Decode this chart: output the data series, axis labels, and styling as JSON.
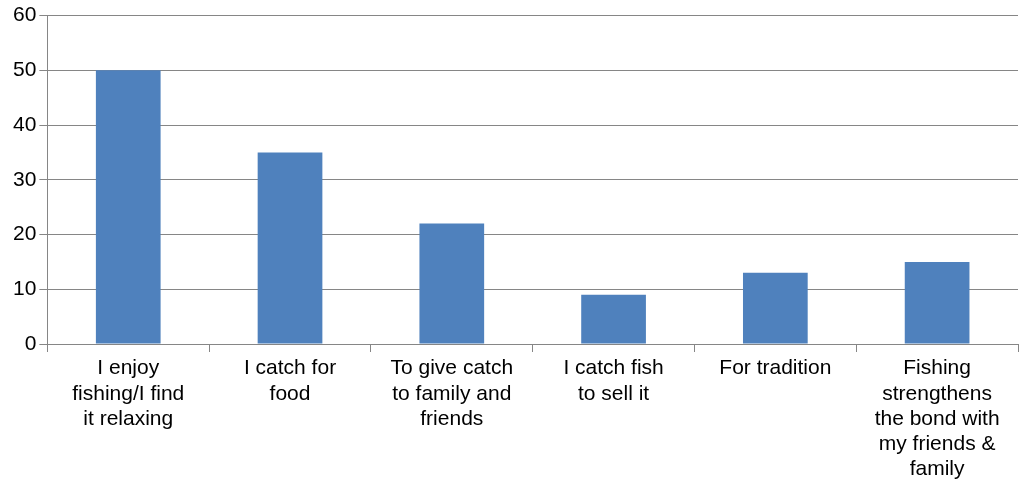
{
  "chart_data": {
    "type": "bar",
    "categories": [
      "I enjoy fishing/I find it relaxing",
      "I catch for food",
      "To give catch to family and friends",
      "I catch fish to sell it",
      "For tradition",
      "Fishing strengthens the bond with my friends & family"
    ],
    "values": [
      50,
      35,
      22,
      9,
      13,
      15
    ],
    "color": "#4f81bd",
    "ylim": [
      0,
      60
    ],
    "yticks": [
      0,
      10,
      20,
      30,
      40,
      50,
      60
    ],
    "grid": "y",
    "legend": false
  }
}
